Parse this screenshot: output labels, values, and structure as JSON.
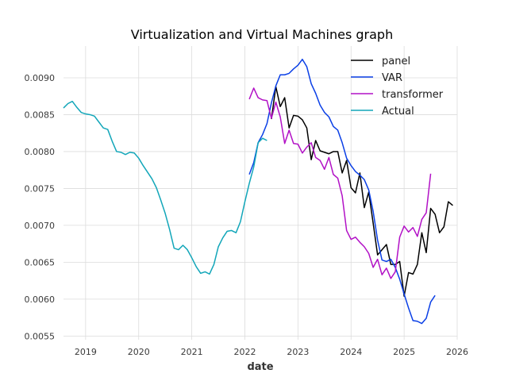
{
  "chart_data": {
    "type": "line",
    "title": "Virtualization and Virtual Machines graph",
    "xlabel": "date",
    "ylabel": "",
    "x_tick_labels": [
      "2019",
      "2020",
      "2021",
      "2022",
      "2023",
      "2024",
      "2025",
      "2026"
    ],
    "y_tick_labels": [
      "0.0055",
      "0.0060",
      "0.0065",
      "0.0070",
      "0.0075",
      "0.0080",
      "0.0085",
      "0.0090"
    ],
    "xlim": [
      "2018-08",
      "2026-01"
    ],
    "ylim": [
      0.00545,
      0.00943
    ],
    "grid": true,
    "legend_position": "top-right",
    "series": [
      {
        "name": "panel",
        "color": "#000000",
        "points": [
          [
            "2022-07",
            0.00844
          ],
          [
            "2022-08",
            0.00888
          ],
          [
            "2022-09",
            0.00861
          ],
          [
            "2022-10",
            0.00873
          ],
          [
            "2022-11",
            0.00832
          ],
          [
            "2022-12",
            0.00849
          ],
          [
            "2023-01",
            0.00848
          ],
          [
            "2023-02",
            0.00843
          ],
          [
            "2023-03",
            0.00832
          ],
          [
            "2023-04",
            0.00789
          ],
          [
            "2023-05",
            0.00815
          ],
          [
            "2023-06",
            0.00801
          ],
          [
            "2023-07",
            0.00799
          ],
          [
            "2023-08",
            0.00797
          ],
          [
            "2023-09",
            0.008
          ],
          [
            "2023-10",
            0.008
          ],
          [
            "2023-11",
            0.00771
          ],
          [
            "2023-12",
            0.00788
          ],
          [
            "2024-01",
            0.00751
          ],
          [
            "2024-02",
            0.00744
          ],
          [
            "2024-03",
            0.00771
          ],
          [
            "2024-04",
            0.00724
          ],
          [
            "2024-05",
            0.00745
          ],
          [
            "2024-06",
            0.00703
          ],
          [
            "2024-07",
            0.0066
          ],
          [
            "2024-08",
            0.00667
          ],
          [
            "2024-09",
            0.00674
          ],
          [
            "2024-10",
            0.00647
          ],
          [
            "2024-11",
            0.00647
          ],
          [
            "2024-12",
            0.00651
          ],
          [
            "2025-01",
            0.00604
          ],
          [
            "2025-02",
            0.00636
          ],
          [
            "2025-03",
            0.00634
          ],
          [
            "2025-04",
            0.00647
          ],
          [
            "2025-05",
            0.0069
          ],
          [
            "2025-06",
            0.00663
          ],
          [
            "2025-07",
            0.00723
          ],
          [
            "2025-08",
            0.00715
          ],
          [
            "2025-09",
            0.0069
          ],
          [
            "2025-10",
            0.00698
          ],
          [
            "2025-11",
            0.00732
          ],
          [
            "2025-12",
            0.00727
          ]
        ]
      },
      {
        "name": "VAR",
        "color": "#0a3fe6",
        "points": [
          [
            "2022-02",
            0.00769
          ],
          [
            "2022-03",
            0.00785
          ],
          [
            "2022-04",
            0.00812
          ],
          [
            "2022-05",
            0.00823
          ],
          [
            "2022-06",
            0.00838
          ],
          [
            "2022-07",
            0.00866
          ],
          [
            "2022-08",
            0.00889
          ],
          [
            "2022-09",
            0.00904
          ],
          [
            "2022-10",
            0.00904
          ],
          [
            "2022-11",
            0.00906
          ],
          [
            "2022-12",
            0.00912
          ],
          [
            "2023-01",
            0.00917
          ],
          [
            "2023-02",
            0.00925
          ],
          [
            "2023-03",
            0.00915
          ],
          [
            "2023-04",
            0.00892
          ],
          [
            "2023-05",
            0.00879
          ],
          [
            "2023-06",
            0.00863
          ],
          [
            "2023-07",
            0.00853
          ],
          [
            "2023-08",
            0.00847
          ],
          [
            "2023-09",
            0.00834
          ],
          [
            "2023-10",
            0.00829
          ],
          [
            "2023-11",
            0.00812
          ],
          [
            "2023-12",
            0.00791
          ],
          [
            "2024-01",
            0.00781
          ],
          [
            "2024-02",
            0.00773
          ],
          [
            "2024-03",
            0.00768
          ],
          [
            "2024-04",
            0.00762
          ],
          [
            "2024-05",
            0.00748
          ],
          [
            "2024-06",
            0.00719
          ],
          [
            "2024-07",
            0.0068
          ],
          [
            "2024-08",
            0.00653
          ],
          [
            "2024-09",
            0.00651
          ],
          [
            "2024-10",
            0.00654
          ],
          [
            "2024-11",
            0.00643
          ],
          [
            "2024-12",
            0.00627
          ],
          [
            "2025-01",
            0.00607
          ],
          [
            "2025-02",
            0.00588
          ],
          [
            "2025-03",
            0.00571
          ],
          [
            "2025-04",
            0.0057
          ],
          [
            "2025-05",
            0.00567
          ],
          [
            "2025-06",
            0.00574
          ],
          [
            "2025-07",
            0.00596
          ],
          [
            "2025-08",
            0.00605
          ]
        ]
      },
      {
        "name": "transformer",
        "color": "#b211c6",
        "points": [
          [
            "2022-02",
            0.00871
          ],
          [
            "2022-03",
            0.00886
          ],
          [
            "2022-04",
            0.00873
          ],
          [
            "2022-05",
            0.0087
          ],
          [
            "2022-06",
            0.00869
          ],
          [
            "2022-07",
            0.00845
          ],
          [
            "2022-08",
            0.00867
          ],
          [
            "2022-09",
            0.00847
          ],
          [
            "2022-10",
            0.00811
          ],
          [
            "2022-11",
            0.00829
          ],
          [
            "2022-12",
            0.00811
          ],
          [
            "2023-01",
            0.0081
          ],
          [
            "2023-02",
            0.00798
          ],
          [
            "2023-03",
            0.00806
          ],
          [
            "2023-04",
            0.00812
          ],
          [
            "2023-05",
            0.00792
          ],
          [
            "2023-06",
            0.00788
          ],
          [
            "2023-07",
            0.00776
          ],
          [
            "2023-08",
            0.00792
          ],
          [
            "2023-09",
            0.00769
          ],
          [
            "2023-10",
            0.00764
          ],
          [
            "2023-11",
            0.0074
          ],
          [
            "2023-12",
            0.00693
          ],
          [
            "2024-01",
            0.00681
          ],
          [
            "2024-02",
            0.00684
          ],
          [
            "2024-03",
            0.00677
          ],
          [
            "2024-04",
            0.00671
          ],
          [
            "2024-05",
            0.00662
          ],
          [
            "2024-06",
            0.00643
          ],
          [
            "2024-07",
            0.00654
          ],
          [
            "2024-08",
            0.00633
          ],
          [
            "2024-09",
            0.00642
          ],
          [
            "2024-10",
            0.00628
          ],
          [
            "2024-11",
            0.00637
          ],
          [
            "2024-12",
            0.00684
          ],
          [
            "2025-01",
            0.00699
          ],
          [
            "2025-02",
            0.00691
          ],
          [
            "2025-03",
            0.00697
          ],
          [
            "2025-04",
            0.00685
          ],
          [
            "2025-05",
            0.00708
          ],
          [
            "2025-06",
            0.00717
          ],
          [
            "2025-07",
            0.0077
          ]
        ]
      },
      {
        "name": "Actual",
        "color": "#12a6b9",
        "points": [
          [
            "2018-08",
            0.00859
          ],
          [
            "2018-09",
            0.00865
          ],
          [
            "2018-10",
            0.00868
          ],
          [
            "2018-11",
            0.0086
          ],
          [
            "2018-12",
            0.00853
          ],
          [
            "2019-01",
            0.00851
          ],
          [
            "2019-02",
            0.0085
          ],
          [
            "2019-03",
            0.00848
          ],
          [
            "2019-04",
            0.0084
          ],
          [
            "2019-05",
            0.00832
          ],
          [
            "2019-06",
            0.0083
          ],
          [
            "2019-07",
            0.00814
          ],
          [
            "2019-08",
            0.008
          ],
          [
            "2019-09",
            0.00799
          ],
          [
            "2019-10",
            0.00796
          ],
          [
            "2019-11",
            0.00799
          ],
          [
            "2019-12",
            0.00798
          ],
          [
            "2020-01",
            0.00791
          ],
          [
            "2020-02",
            0.00781
          ],
          [
            "2020-03",
            0.00772
          ],
          [
            "2020-04",
            0.00763
          ],
          [
            "2020-05",
            0.00751
          ],
          [
            "2020-06",
            0.00734
          ],
          [
            "2020-07",
            0.00716
          ],
          [
            "2020-08",
            0.00694
          ],
          [
            "2020-09",
            0.00669
          ],
          [
            "2020-10",
            0.00667
          ],
          [
            "2020-11",
            0.00673
          ],
          [
            "2020-12",
            0.00667
          ],
          [
            "2021-01",
            0.00656
          ],
          [
            "2021-02",
            0.00644
          ],
          [
            "2021-03",
            0.00635
          ],
          [
            "2021-04",
            0.00637
          ],
          [
            "2021-05",
            0.00634
          ],
          [
            "2021-06",
            0.00647
          ],
          [
            "2021-07",
            0.00671
          ],
          [
            "2021-08",
            0.00683
          ],
          [
            "2021-09",
            0.00692
          ],
          [
            "2021-10",
            0.00693
          ],
          [
            "2021-11",
            0.0069
          ],
          [
            "2021-12",
            0.00705
          ],
          [
            "2022-01",
            0.00732
          ],
          [
            "2022-02",
            0.00757
          ],
          [
            "2022-03",
            0.00779
          ],
          [
            "2022-04",
            0.00812
          ],
          [
            "2022-05",
            0.00818
          ],
          [
            "2022-06",
            0.00815
          ]
        ]
      }
    ]
  }
}
